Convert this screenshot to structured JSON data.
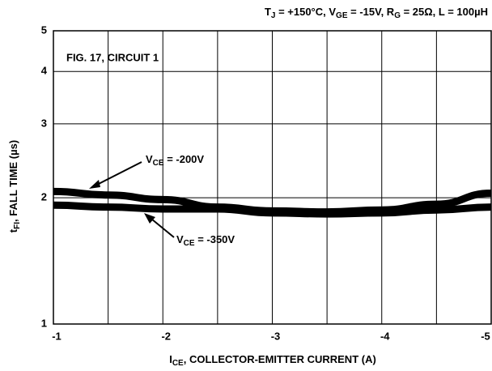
{
  "chart_data": {
    "type": "line",
    "title": [
      {
        "t": "T"
      },
      {
        "t": "J",
        "sub": true
      },
      {
        "t": " = +150°C, V"
      },
      {
        "t": "GE",
        "sub": true
      },
      {
        "t": " = -15V, R"
      },
      {
        "t": "G",
        "sub": true
      },
      {
        "t": " = 25Ω, L = 100µH"
      }
    ],
    "x_label": [
      {
        "t": "I"
      },
      {
        "t": "CE",
        "sub": true
      },
      {
        "t": ",  COLLECTOR-EMITTER CURRENT (A)"
      }
    ],
    "y_label": [
      {
        "t": "t"
      },
      {
        "t": "FI",
        "sub": true
      },
      {
        "t": ",  FALL TIME (µs)"
      }
    ],
    "figure_label": "FIG. 17, CIRCUIT 1",
    "x": [
      -1,
      -1.5,
      -2,
      -2.5,
      -3,
      -3.5,
      -4,
      -4.5,
      -5
    ],
    "series": [
      {
        "name": [
          {
            "t": "V"
          },
          {
            "t": "CE",
            "sub": true
          },
          {
            "t": " = -200V"
          }
        ],
        "color": "#000000",
        "values": [
          2.07,
          2.03,
          1.98,
          1.9,
          1.86,
          1.85,
          1.87,
          1.93,
          2.05
        ]
      },
      {
        "name": [
          {
            "t": "V"
          },
          {
            "t": "CE",
            "sub": true
          },
          {
            "t": " = -350V"
          }
        ],
        "color": "#000000",
        "values": [
          1.92,
          1.9,
          1.88,
          1.88,
          1.84,
          1.83,
          1.84,
          1.87,
          1.9
        ]
      }
    ],
    "xlim": [
      -1,
      -5
    ],
    "xticks": [
      -1,
      -2,
      -3,
      -4,
      -5
    ],
    "xminor_grid": [
      -1.5,
      -2.5,
      -3.5,
      -4.5
    ],
    "ylim": [
      1,
      5
    ],
    "yticks": [
      1,
      2,
      3,
      4,
      5
    ],
    "ylog": true,
    "grid": true
  }
}
